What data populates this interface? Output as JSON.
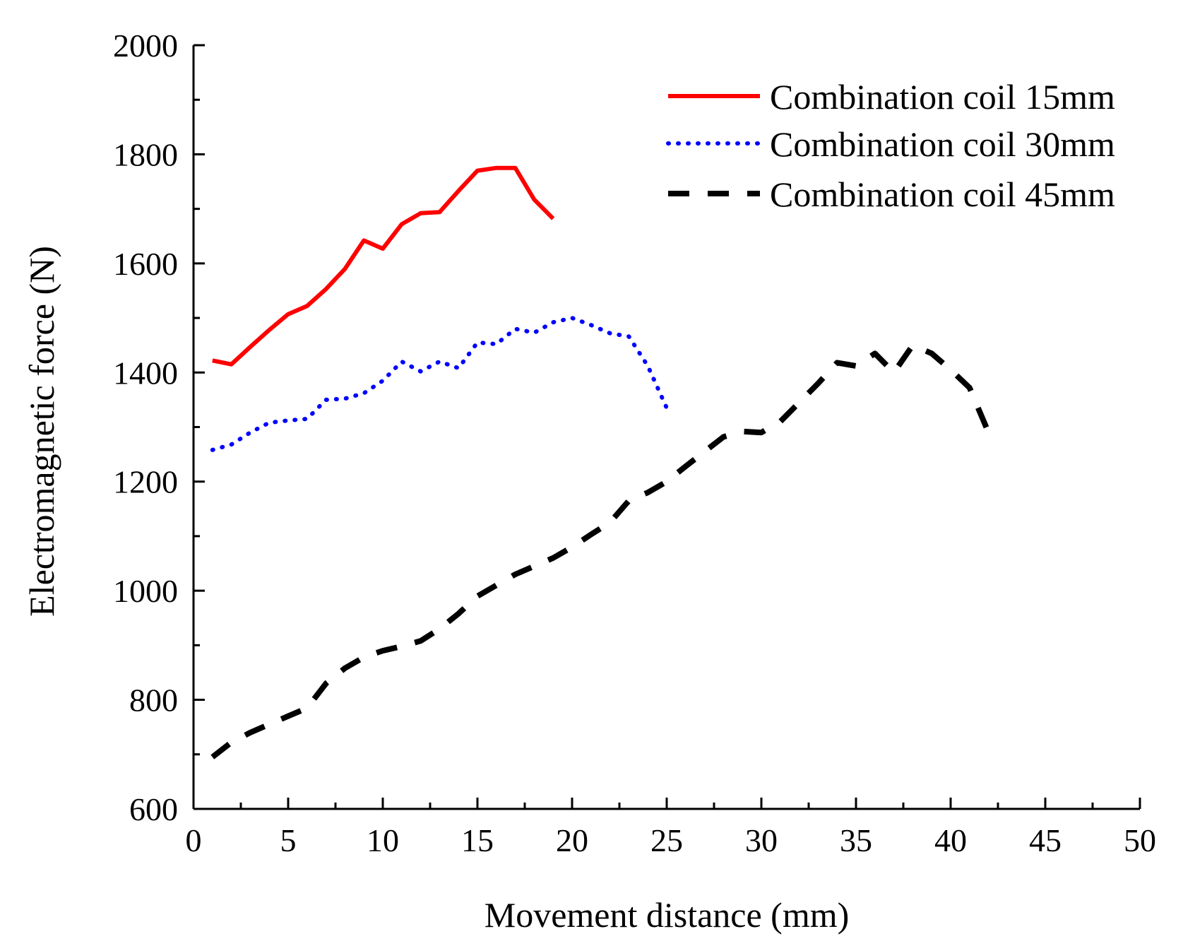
{
  "chart_data": {
    "type": "line",
    "title": "",
    "xlabel": "Movement distance (mm)",
    "ylabel": "Electromagnetic force (N)",
    "xlim": [
      0,
      50
    ],
    "ylim": [
      600,
      2000
    ],
    "xticks": [
      "0",
      "5",
      "10",
      "15",
      "20",
      "25",
      "30",
      "35",
      "40",
      "45",
      "50"
    ],
    "yticks": [
      "600",
      "800",
      "1000",
      "1200",
      "1400",
      "1600",
      "1800",
      "2000"
    ],
    "grid": false,
    "legend_position": "top-right",
    "series": [
      {
        "name": "Combination coil 15mm",
        "color": "#ff0000",
        "style": "solid",
        "x": [
          1,
          2,
          3,
          4,
          5,
          6,
          7,
          8,
          9,
          10,
          11,
          12,
          13,
          14,
          15,
          16,
          17,
          18,
          19
        ],
        "y": [
          1422,
          1415,
          1447,
          1478,
          1507,
          1522,
          1553,
          1590,
          1642,
          1627,
          1672,
          1692,
          1694,
          1733,
          1770,
          1775,
          1775,
          1717,
          1682
        ]
      },
      {
        "name": "Combination coil 30mm",
        "color": "#0000ff",
        "style": "dotted",
        "x": [
          1,
          2,
          3,
          4,
          5,
          6,
          7,
          8,
          9,
          10,
          11,
          12,
          13,
          14,
          15,
          16,
          17,
          18,
          19,
          20,
          21,
          22,
          23,
          24,
          25
        ],
        "y": [
          1258,
          1268,
          1290,
          1308,
          1312,
          1315,
          1350,
          1352,
          1362,
          1385,
          1420,
          1402,
          1420,
          1408,
          1455,
          1452,
          1480,
          1473,
          1492,
          1500,
          1487,
          1472,
          1466,
          1412,
          1335
        ]
      },
      {
        "name": "Combination coil 45mm",
        "color": "#000000",
        "style": "dashed",
        "x": [
          1,
          2,
          3,
          4,
          5,
          6,
          7,
          8,
          9,
          10,
          11,
          12,
          13,
          14,
          15,
          16,
          17,
          18,
          19,
          20,
          21,
          22,
          23,
          24,
          25,
          26,
          27,
          28,
          29,
          30,
          31,
          32,
          33,
          34,
          35,
          36,
          37,
          38,
          39,
          40,
          41,
          42
        ],
        "y": [
          695,
          722,
          740,
          755,
          770,
          785,
          830,
          858,
          878,
          890,
          898,
          908,
          930,
          958,
          990,
          1010,
          1030,
          1045,
          1060,
          1080,
          1103,
          1125,
          1165,
          1180,
          1200,
          1228,
          1255,
          1282,
          1292,
          1290,
          1310,
          1345,
          1380,
          1418,
          1412,
          1435,
          1400,
          1450,
          1435,
          1405,
          1372,
          1290
        ]
      }
    ]
  }
}
